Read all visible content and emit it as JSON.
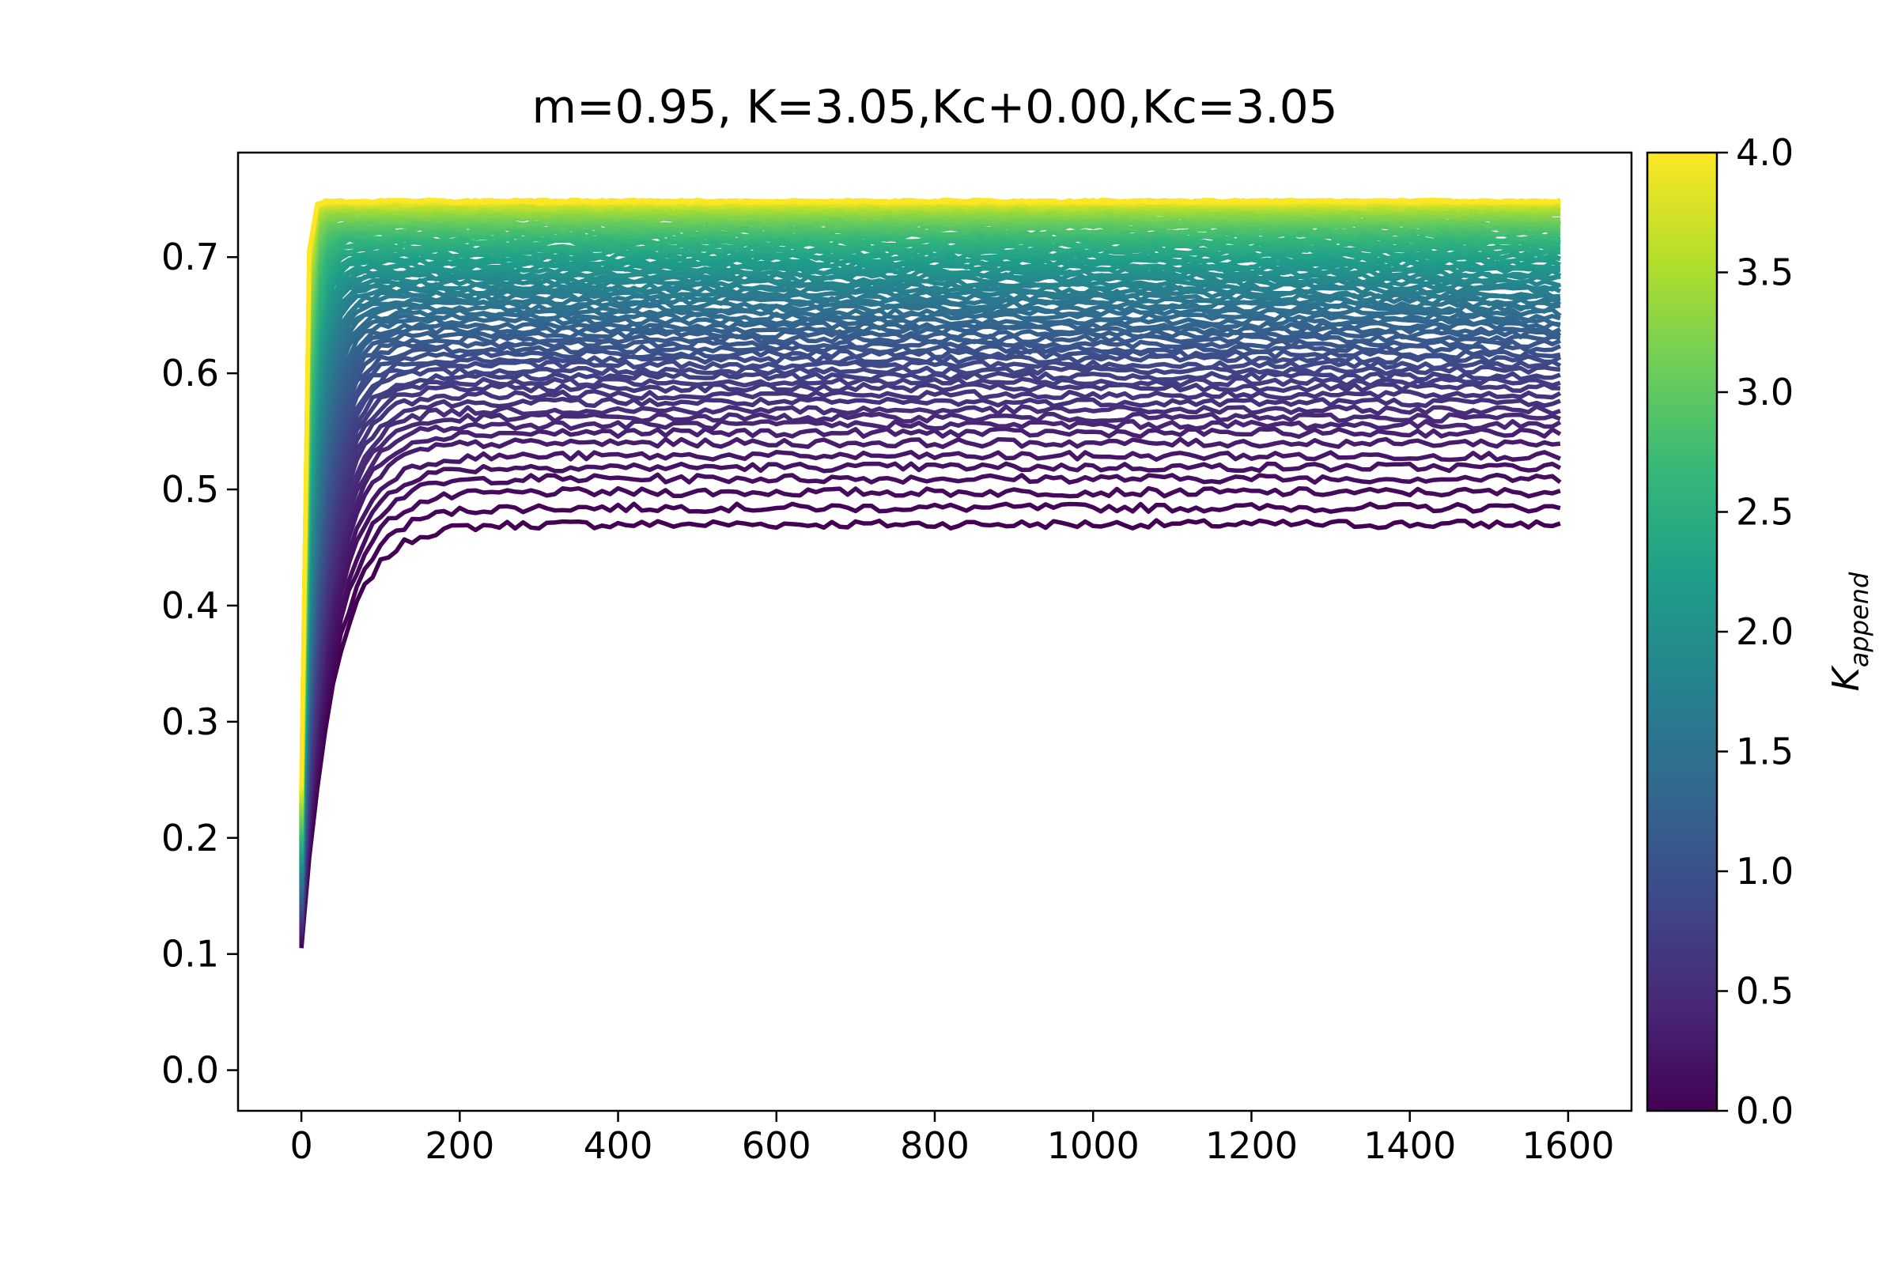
{
  "chart_data": {
    "type": "line",
    "title": "m=0.95, K=3.05,Kc+0.00,Kc=3.05",
    "xlabel": "",
    "ylabel": "",
    "xlim": [
      -80,
      1680
    ],
    "ylim": [
      -0.035,
      0.79
    ],
    "xticks": [
      0,
      200,
      400,
      600,
      800,
      1000,
      1200,
      1400,
      1600
    ],
    "xtick_labels": [
      "0",
      "200",
      "400",
      "600",
      "800",
      "1000",
      "1200",
      "1400",
      "1600"
    ],
    "yticks": [
      0.0,
      0.1,
      0.2,
      0.3,
      0.4,
      0.5,
      0.6,
      0.7
    ],
    "ytick_labels": [
      "0.0",
      "0.1",
      "0.2",
      "0.3",
      "0.4",
      "0.5",
      "0.6",
      "0.7"
    ],
    "grid": false,
    "colorbar": {
      "label": "K",
      "label_subscript": "append",
      "colormap": "viridis",
      "range": [
        0.0,
        4.0
      ],
      "ticks": [
        0.0,
        0.5,
        1.0,
        1.5,
        2.0,
        2.5,
        3.0,
        3.5,
        4.0
      ],
      "tick_labels": [
        "0.0",
        "0.5",
        "1.0",
        "1.5",
        "2.0",
        "2.5",
        "3.0",
        "3.5",
        "4.0"
      ],
      "stops": [
        "#440154",
        "#482878",
        "#3e4989",
        "#31688e",
        "#26828e",
        "#1f9e89",
        "#35b779",
        "#6ece58",
        "#b5de2b",
        "#fde725"
      ]
    },
    "x_range": [
      0,
      1590
    ],
    "x_step": 10,
    "series_family": {
      "count": 80,
      "k_values": {
        "start": 0.0,
        "end": 4.0
      },
      "y_at_x0": {
        "at_k0": 0.105,
        "at_k4": 0.245
      },
      "plateau_y": [
        0.47,
        0.493,
        0.512,
        0.527,
        0.545,
        0.556,
        0.566,
        0.577,
        0.587,
        0.595,
        0.603,
        0.611,
        0.618,
        0.625,
        0.632,
        0.638,
        0.644,
        0.65,
        0.656,
        0.661,
        0.666,
        0.671,
        0.676,
        0.681,
        0.685,
        0.689,
        0.693,
        0.697,
        0.701,
        0.705,
        0.708,
        0.712,
        0.715,
        0.718,
        0.721,
        0.724,
        0.727,
        0.729,
        0.732,
        0.734,
        0.736,
        0.738,
        0.74,
        0.742,
        0.743,
        0.745,
        0.746,
        0.747,
        0.748,
        0.748
      ]
    }
  }
}
